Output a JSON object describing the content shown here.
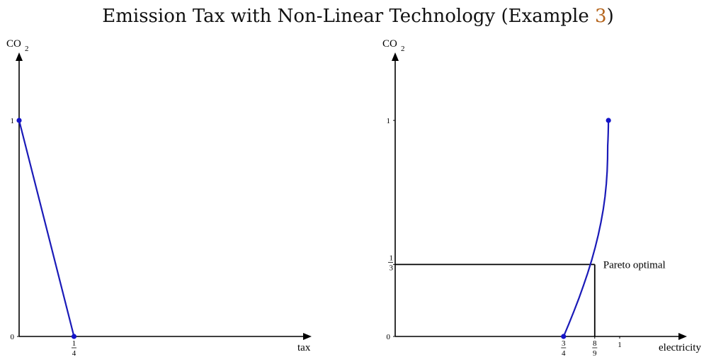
{
  "title": {
    "text": "Emission Tax with Non-Linear Technology (Example ",
    "ref": "3",
    "close": ")"
  },
  "chart_data": [
    {
      "type": "line",
      "ylabel": "CO",
      "ylabel_sub": "2",
      "xlabel": "tax",
      "xlim": [
        0,
        1.6
      ],
      "ylim": [
        0,
        1.2
      ],
      "x_ticks": [
        {
          "value": 0.25,
          "num": "1",
          "den": "4"
        }
      ],
      "y_ticks": [
        {
          "value": 0,
          "label": "0"
        },
        {
          "value": 1,
          "label": "1"
        }
      ],
      "series": [
        {
          "x": [
            0,
            0.25
          ],
          "y": [
            1,
            0
          ]
        }
      ],
      "points": [
        {
          "x": 0,
          "y": 1
        },
        {
          "x": 0.25,
          "y": 0
        }
      ],
      "colors": {
        "curve": "#1a1ab8",
        "points": "#1414c8"
      }
    },
    {
      "type": "line",
      "ylabel": "CO",
      "ylabel_sub": "2",
      "xlabel": "electricity",
      "xlim": [
        0,
        1.2
      ],
      "ylim": [
        0,
        1.2
      ],
      "x_ticks": [
        {
          "value": 0.75,
          "num": "3",
          "den": "4"
        },
        {
          "value": 0.8889,
          "num": "8",
          "den": "9"
        },
        {
          "value": 1,
          "label": "1"
        }
      ],
      "y_ticks": [
        {
          "value": 0,
          "label": "0"
        },
        {
          "value": 0.3333,
          "num": "1",
          "den": "3"
        },
        {
          "value": 1,
          "label": "1"
        }
      ],
      "series": [
        {
          "x": [
            0.75,
            0.7738,
            0.7966,
            0.8182,
            0.8386,
            0.8576,
            0.875,
            0.8908,
            0.9048,
            0.9168,
            0.9268,
            0.9347,
            0.9405,
            0.9441,
            0.9459,
            0.9467,
            0.9479,
            0.949,
            0.9496,
            0.95
          ],
          "y": [
            0,
            0.0588,
            0.1176,
            0.1765,
            0.2353,
            0.2941,
            0.3529,
            0.4118,
            0.4706,
            0.5294,
            0.5882,
            0.6471,
            0.7059,
            0.7647,
            0.8235,
            0.8824,
            0.9118,
            0.9412,
            0.9706,
            1.0
          ]
        }
      ],
      "points": [
        {
          "x": 0.75,
          "y": 0
        },
        {
          "x": 0.95,
          "y": 1
        }
      ],
      "annotations": [
        {
          "text": "Pareto optimal",
          "x": 0.8889,
          "y": 0.3333
        }
      ],
      "guides": {
        "x": 0.8889,
        "y": 0.3333
      },
      "colors": {
        "curve": "#1a1ab8",
        "points": "#1414c8"
      }
    }
  ]
}
